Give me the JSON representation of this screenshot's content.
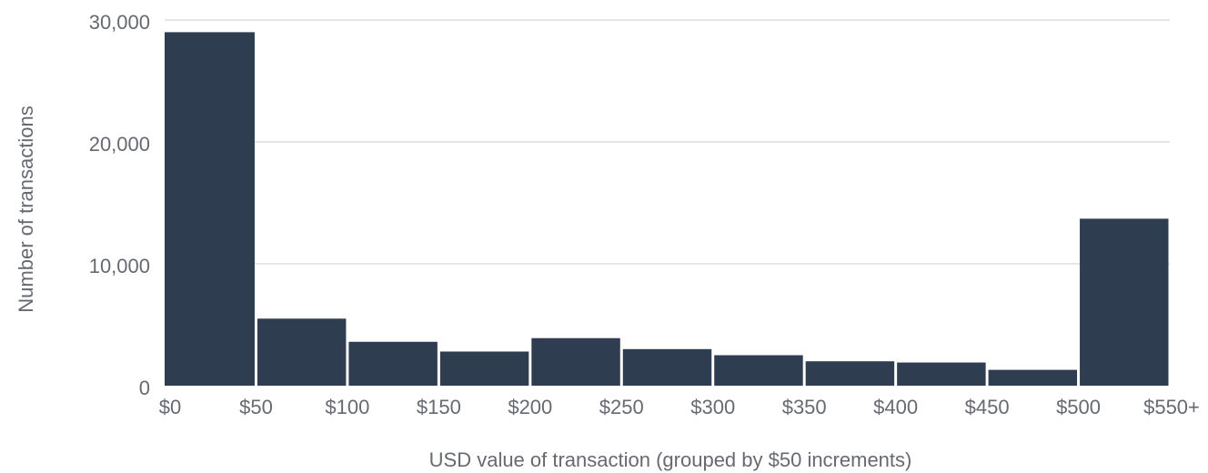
{
  "chart_data": {
    "type": "histogram",
    "xlabel": "USD value of transaction (grouped by $50 increments)",
    "ylabel": "Number of transactions",
    "bins": [
      {
        "value": 0,
        "label": "$0"
      },
      {
        "value": 50,
        "label": "$50"
      },
      {
        "value": 100,
        "label": "$100"
      },
      {
        "value": 150,
        "label": "$150"
      },
      {
        "value": 200,
        "label": "$200"
      },
      {
        "value": 250,
        "label": "$250"
      },
      {
        "value": 300,
        "label": "$300"
      },
      {
        "value": 350,
        "label": "$350"
      },
      {
        "value": 400,
        "label": "$400"
      },
      {
        "value": 450,
        "label": "$450"
      },
      {
        "value": 500,
        "label": "$500"
      },
      {
        "value": 550,
        "label": "$550+"
      }
    ],
    "values": [
      29000,
      5500,
      3600,
      2800,
      3900,
      3000,
      2500,
      2000,
      1900,
      1300,
      13700
    ],
    "color": "#2e3d50",
    "xlim": [
      0,
      550
    ],
    "ylim": [
      0,
      30000
    ],
    "yticks": [
      0,
      {
        "value": 10000,
        "label": "10,000"
      },
      {
        "value": 20000,
        "label": "20,000"
      },
      {
        "value": 30000,
        "label": "30,000"
      }
    ],
    "grid": true
  }
}
